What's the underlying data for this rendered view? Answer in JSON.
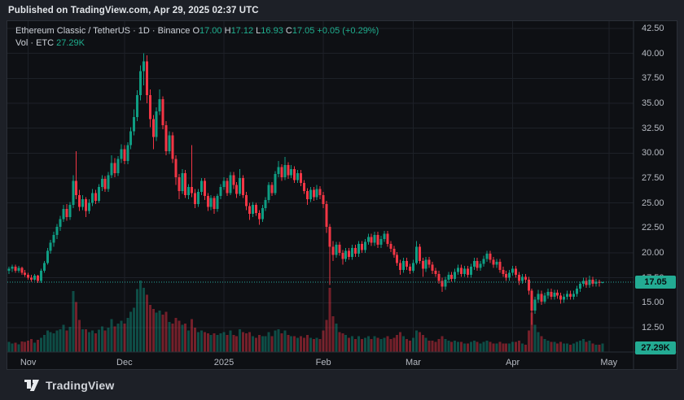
{
  "published_bar": {
    "text": "Published on TradingView.com, Apr 29, 2025 02:37 UTC"
  },
  "legend": {
    "series_text": "Ethereum Classic / TetherUS · 1D · Binance",
    "o_label": "O",
    "o_value": "17.00",
    "h_label": "H",
    "h_value": "17.12",
    "l_label": "L",
    "l_value": "16.93",
    "c_label": "C",
    "c_value": "17.05",
    "change": "+0.05 (+0.29%)",
    "vol_label": "Vol · ETC",
    "vol_value": "27.29K"
  },
  "price_axis": {
    "ticks": [
      {
        "label": "42.50",
        "value": 42.5
      },
      {
        "label": "40.00",
        "value": 40.0
      },
      {
        "label": "37.50",
        "value": 37.5
      },
      {
        "label": "35.00",
        "value": 35.0
      },
      {
        "label": "32.50",
        "value": 32.5
      },
      {
        "label": "30.00",
        "value": 30.0
      },
      {
        "label": "27.50",
        "value": 27.5
      },
      {
        "label": "25.00",
        "value": 25.0
      },
      {
        "label": "22.50",
        "value": 22.5
      },
      {
        "label": "20.00",
        "value": 20.0
      },
      {
        "label": "17.50",
        "value": 17.5
      },
      {
        "label": "15.00",
        "value": 15.0
      },
      {
        "label": "12.50",
        "value": 12.5
      }
    ],
    "last_price": "17.05",
    "last_price_value": 17.05,
    "last_volume": "27.29K"
  },
  "time_axis": {
    "ticks": [
      {
        "label": "Nov",
        "index": 6
      },
      {
        "label": "Dec",
        "index": 36
      },
      {
        "label": "2025",
        "index": 67
      },
      {
        "label": "Feb",
        "index": 98
      },
      {
        "label": "Mar",
        "index": 126
      },
      {
        "label": "Apr",
        "index": 157
      },
      {
        "label": "May",
        "index": 187
      }
    ]
  },
  "footer": {
    "brand": "TradingView"
  },
  "colors": {
    "up": "#0f9d83",
    "down": "#f23645",
    "vol_up": "rgba(16,154,130,0.45)",
    "vol_down": "rgba(242,54,69,0.45)",
    "grid": "#1d2128",
    "axis_sep": "#2b2f37",
    "dotted_price_line": "#26a69a",
    "label_bg": "#23ab93",
    "panel_bg": "#0e1014",
    "outer_bg": "#1d2027"
  },
  "chart_data": {
    "type": "candlestick+volume",
    "title": "Ethereum Classic / TetherUS",
    "exchange": "Binance",
    "interval": "1D",
    "start_date": "2024-10-26",
    "end_date": "2025-04-29",
    "last_close": 17.05,
    "last_change": "+0.05 (+0.29%)",
    "last_volume_label": "27.29K",
    "ylim": [
      10.5,
      43.5
    ],
    "columns": [
      "open",
      "high",
      "low",
      "close",
      "volume_rel_0_100"
    ],
    "candles": [
      [
        18.2,
        18.6,
        17.9,
        18.4,
        14
      ],
      [
        18.4,
        18.8,
        18.1,
        18.6,
        12
      ],
      [
        18.6,
        18.8,
        18.0,
        18.2,
        13
      ],
      [
        18.2,
        18.7,
        18.0,
        18.5,
        11
      ],
      [
        18.5,
        18.6,
        17.8,
        18.0,
        15
      ],
      [
        18.0,
        18.3,
        17.6,
        17.8,
        14
      ],
      [
        17.8,
        18.0,
        17.3,
        17.5,
        16
      ],
      [
        17.5,
        17.8,
        17.1,
        17.3,
        18
      ],
      [
        17.3,
        17.9,
        17.2,
        17.7,
        13
      ],
      [
        17.7,
        17.8,
        17.0,
        17.2,
        17
      ],
      [
        17.2,
        18.4,
        17.0,
        18.2,
        20
      ],
      [
        18.2,
        19.2,
        18.0,
        19.0,
        24
      ],
      [
        19.0,
        20.5,
        18.8,
        20.2,
        30
      ],
      [
        20.2,
        21.3,
        19.9,
        21.0,
        28
      ],
      [
        21.0,
        22.1,
        20.6,
        21.8,
        26
      ],
      [
        21.8,
        22.9,
        21.4,
        22.6,
        30
      ],
      [
        22.6,
        23.7,
        22.2,
        23.4,
        32
      ],
      [
        23.4,
        24.8,
        23.1,
        24.4,
        38
      ],
      [
        24.4,
        24.9,
        23.2,
        23.6,
        30
      ],
      [
        23.6,
        25.1,
        23.3,
        24.8,
        35
      ],
      [
        24.8,
        27.8,
        24.5,
        27.2,
        85
      ],
      [
        27.2,
        30.2,
        25.4,
        25.8,
        70
      ],
      [
        25.8,
        26.3,
        24.2,
        24.6,
        45
      ],
      [
        24.6,
        25.8,
        24.3,
        25.4,
        32
      ],
      [
        25.4,
        25.6,
        23.6,
        24.2,
        32
      ],
      [
        24.2,
        25.4,
        23.9,
        25.0,
        28
      ],
      [
        25.0,
        26.4,
        24.7,
        26.0,
        30
      ],
      [
        26.0,
        26.3,
        24.9,
        25.2,
        26
      ],
      [
        25.2,
        26.9,
        25.0,
        26.6,
        31
      ],
      [
        26.6,
        27.8,
        26.2,
        27.4,
        36
      ],
      [
        27.4,
        27.7,
        26.1,
        26.4,
        30
      ],
      [
        26.4,
        28.1,
        26.1,
        27.8,
        34
      ],
      [
        27.8,
        29.8,
        27.5,
        29.0,
        46
      ],
      [
        29.0,
        29.5,
        27.6,
        28.0,
        36
      ],
      [
        28.0,
        29.7,
        27.7,
        29.4,
        40
      ],
      [
        29.4,
        30.9,
        29.0,
        30.4,
        44
      ],
      [
        30.4,
        30.8,
        28.9,
        29.2,
        40
      ],
      [
        29.2,
        31.1,
        28.9,
        30.8,
        48
      ],
      [
        30.8,
        32.6,
        30.4,
        32.2,
        56
      ],
      [
        32.2,
        34.4,
        31.8,
        33.6,
        62
      ],
      [
        33.6,
        36.3,
        33.2,
        35.8,
        88
      ],
      [
        35.8,
        38.8,
        35.3,
        38.2,
        100
      ],
      [
        38.2,
        40.0,
        36.8,
        39.2,
        90
      ],
      [
        39.2,
        39.8,
        35.0,
        35.8,
        80
      ],
      [
        35.8,
        36.4,
        32.6,
        33.4,
        66
      ],
      [
        33.4,
        33.8,
        30.4,
        31.6,
        60
      ],
      [
        31.6,
        34.6,
        31.2,
        34.2,
        55
      ],
      [
        34.2,
        36.4,
        33.8,
        35.4,
        58
      ],
      [
        35.4,
        35.7,
        32.4,
        32.8,
        52
      ],
      [
        32.8,
        33.2,
        29.8,
        30.2,
        56
      ],
      [
        30.2,
        32.2,
        29.9,
        31.8,
        42
      ],
      [
        31.8,
        32.1,
        29.0,
        29.4,
        40
      ],
      [
        29.4,
        29.8,
        26.8,
        27.6,
        48
      ],
      [
        27.6,
        27.9,
        25.4,
        26.2,
        44
      ],
      [
        26.2,
        28.4,
        25.9,
        28.0,
        38
      ],
      [
        28.0,
        28.3,
        25.5,
        25.8,
        40
      ],
      [
        25.8,
        26.9,
        25.4,
        26.6,
        30
      ],
      [
        26.6,
        30.8,
        25.6,
        26.0,
        46
      ],
      [
        26.0,
        26.4,
        24.5,
        24.9,
        34
      ],
      [
        24.9,
        26.4,
        24.6,
        26.1,
        28
      ],
      [
        26.1,
        27.5,
        25.8,
        27.2,
        30
      ],
      [
        27.2,
        27.5,
        25.3,
        25.7,
        28
      ],
      [
        25.7,
        26.0,
        24.2,
        24.6,
        26
      ],
      [
        24.6,
        25.8,
        24.3,
        25.5,
        24
      ],
      [
        25.5,
        25.7,
        23.9,
        24.4,
        26
      ],
      [
        24.4,
        25.9,
        24.1,
        25.7,
        24
      ],
      [
        25.7,
        26.9,
        25.4,
        26.6,
        26
      ],
      [
        26.6,
        27.6,
        26.3,
        27.2,
        28
      ],
      [
        27.2,
        27.5,
        25.7,
        26.0,
        24
      ],
      [
        26.0,
        28.1,
        25.8,
        27.8,
        30
      ],
      [
        27.8,
        28.1,
        26.4,
        26.8,
        24
      ],
      [
        26.8,
        27.1,
        25.5,
        25.9,
        22
      ],
      [
        25.9,
        28.4,
        25.7,
        27.5,
        32
      ],
      [
        27.5,
        27.8,
        25.5,
        25.8,
        28
      ],
      [
        25.8,
        26.1,
        24.3,
        24.7,
        26
      ],
      [
        24.7,
        25.0,
        23.3,
        23.9,
        28
      ],
      [
        23.9,
        25.1,
        23.6,
        24.8,
        22
      ],
      [
        24.8,
        25.0,
        23.7,
        24.0,
        20
      ],
      [
        24.0,
        24.3,
        22.8,
        23.4,
        24
      ],
      [
        23.4,
        24.8,
        23.1,
        24.5,
        22
      ],
      [
        24.5,
        25.6,
        24.2,
        25.3,
        22
      ],
      [
        25.3,
        27.1,
        25.0,
        26.8,
        28
      ],
      [
        26.8,
        27.1,
        25.7,
        26.0,
        22
      ],
      [
        26.0,
        28.2,
        25.8,
        27.9,
        30
      ],
      [
        27.9,
        29.2,
        27.6,
        28.6,
        32
      ],
      [
        28.6,
        28.9,
        27.2,
        27.6,
        26
      ],
      [
        27.6,
        29.6,
        27.3,
        28.8,
        30
      ],
      [
        28.8,
        29.1,
        27.4,
        27.8,
        24
      ],
      [
        27.8,
        28.8,
        27.5,
        28.4,
        22
      ],
      [
        28.4,
        28.7,
        27.0,
        27.3,
        22
      ],
      [
        27.3,
        28.3,
        27.0,
        28.0,
        20
      ],
      [
        28.0,
        28.3,
        26.7,
        27.0,
        22
      ],
      [
        27.0,
        27.3,
        25.9,
        26.2,
        20
      ],
      [
        26.2,
        26.5,
        24.8,
        25.4,
        24
      ],
      [
        25.4,
        26.6,
        25.1,
        26.3,
        20
      ],
      [
        26.3,
        26.6,
        25.2,
        25.6,
        18
      ],
      [
        25.6,
        26.8,
        25.3,
        26.4,
        20
      ],
      [
        26.4,
        26.7,
        25.4,
        25.8,
        18
      ],
      [
        25.8,
        26.1,
        24.5,
        24.9,
        30
      ],
      [
        24.9,
        25.2,
        22.0,
        22.6,
        45
      ],
      [
        22.6,
        22.9,
        16.8,
        20.6,
        90
      ],
      [
        20.6,
        21.2,
        19.2,
        19.8,
        50
      ],
      [
        19.8,
        21.1,
        19.5,
        20.8,
        40
      ],
      [
        20.8,
        21.1,
        19.7,
        20.0,
        28
      ],
      [
        20.0,
        20.3,
        18.8,
        19.4,
        26
      ],
      [
        19.4,
        20.5,
        19.1,
        20.2,
        24
      ],
      [
        20.2,
        20.5,
        19.3,
        19.6,
        20
      ],
      [
        19.6,
        20.8,
        19.3,
        20.5,
        22
      ],
      [
        20.5,
        20.8,
        19.6,
        19.9,
        18
      ],
      [
        19.9,
        21.2,
        19.6,
        20.9,
        22
      ],
      [
        20.9,
        21.2,
        20.0,
        20.3,
        18
      ],
      [
        20.3,
        21.4,
        20.0,
        21.1,
        20
      ],
      [
        21.1,
        21.9,
        20.8,
        21.6,
        22
      ],
      [
        21.6,
        21.9,
        20.7,
        21.0,
        18
      ],
      [
        21.0,
        22.1,
        20.7,
        21.8,
        22
      ],
      [
        21.8,
        22.1,
        20.5,
        20.8,
        20
      ],
      [
        20.8,
        21.7,
        20.5,
        21.4,
        18
      ],
      [
        21.4,
        22.2,
        21.1,
        21.9,
        20
      ],
      [
        21.9,
        22.2,
        20.6,
        20.9,
        22
      ],
      [
        20.9,
        21.2,
        20.1,
        20.4,
        18
      ],
      [
        20.4,
        20.7,
        19.5,
        19.8,
        20
      ],
      [
        19.8,
        20.1,
        18.7,
        19.0,
        24
      ],
      [
        19.0,
        19.3,
        17.8,
        18.3,
        28
      ],
      [
        18.3,
        19.5,
        18.0,
        19.2,
        22
      ],
      [
        19.2,
        19.5,
        18.3,
        18.6,
        18
      ],
      [
        18.6,
        18.9,
        17.9,
        18.2,
        16
      ],
      [
        18.2,
        19.3,
        18.0,
        19.0,
        20
      ],
      [
        19.0,
        21.2,
        18.8,
        20.6,
        30
      ],
      [
        20.6,
        20.9,
        18.9,
        19.2,
        28
      ],
      [
        19.2,
        19.5,
        17.6,
        18.4,
        24
      ],
      [
        18.4,
        19.6,
        18.1,
        19.3,
        20
      ],
      [
        19.3,
        19.6,
        18.5,
        18.8,
        16
      ],
      [
        18.8,
        19.1,
        17.9,
        18.2,
        16
      ],
      [
        18.2,
        18.5,
        17.6,
        17.9,
        14
      ],
      [
        17.9,
        18.2,
        16.9,
        17.2,
        18
      ],
      [
        17.2,
        17.5,
        16.1,
        16.6,
        22
      ],
      [
        16.6,
        17.6,
        16.3,
        17.3,
        18
      ],
      [
        17.3,
        18.1,
        17.0,
        17.8,
        16
      ],
      [
        17.8,
        18.1,
        17.1,
        17.4,
        14
      ],
      [
        17.4,
        18.4,
        17.1,
        18.1,
        16
      ],
      [
        18.1,
        18.8,
        17.8,
        18.5,
        14
      ],
      [
        18.5,
        18.8,
        17.6,
        17.9,
        14
      ],
      [
        17.9,
        18.7,
        17.6,
        18.4,
        12
      ],
      [
        18.4,
        18.7,
        17.5,
        17.8,
        12
      ],
      [
        17.8,
        18.9,
        17.5,
        18.6,
        14
      ],
      [
        18.6,
        19.5,
        18.3,
        19.2,
        16
      ],
      [
        19.2,
        19.5,
        18.2,
        18.5,
        14
      ],
      [
        18.5,
        19.2,
        18.2,
        18.9,
        12
      ],
      [
        18.9,
        19.7,
        18.6,
        19.4,
        14
      ],
      [
        19.4,
        20.2,
        19.1,
        19.9,
        16
      ],
      [
        19.9,
        20.2,
        19.0,
        19.3,
        14
      ],
      [
        19.3,
        19.6,
        18.5,
        18.8,
        12
      ],
      [
        18.8,
        19.4,
        18.5,
        19.1,
        12
      ],
      [
        19.1,
        19.4,
        18.0,
        18.3,
        14
      ],
      [
        18.3,
        18.6,
        17.6,
        17.9,
        12
      ],
      [
        17.9,
        18.2,
        17.2,
        17.5,
        12
      ],
      [
        17.5,
        18.3,
        17.2,
        18.0,
        12
      ],
      [
        18.0,
        18.7,
        17.7,
        18.4,
        14
      ],
      [
        18.4,
        18.7,
        17.5,
        17.8,
        14
      ],
      [
        17.8,
        18.1,
        16.8,
        17.2,
        16
      ],
      [
        17.2,
        17.9,
        16.9,
        17.6,
        12
      ],
      [
        17.6,
        17.9,
        17.0,
        17.3,
        10
      ],
      [
        17.3,
        17.6,
        15.8,
        16.2,
        30
      ],
      [
        16.2,
        16.4,
        12.8,
        14.2,
        55
      ],
      [
        14.2,
        15.6,
        13.9,
        15.3,
        38
      ],
      [
        15.3,
        16.3,
        15.0,
        15.9,
        28
      ],
      [
        15.9,
        16.2,
        14.8,
        15.1,
        22
      ],
      [
        15.1,
        16.0,
        14.9,
        15.7,
        18
      ],
      [
        15.7,
        16.4,
        15.4,
        16.1,
        16
      ],
      [
        16.1,
        16.4,
        15.3,
        15.6,
        14
      ],
      [
        15.6,
        16.3,
        15.3,
        16.0,
        14
      ],
      [
        16.0,
        16.3,
        15.4,
        15.7,
        12
      ],
      [
        15.7,
        16.0,
        14.9,
        15.3,
        14
      ],
      [
        15.3,
        15.9,
        15.0,
        15.6,
        12
      ],
      [
        15.6,
        16.2,
        15.3,
        15.9,
        12
      ],
      [
        15.9,
        16.2,
        15.3,
        15.6,
        10
      ],
      [
        15.6,
        16.2,
        15.3,
        15.9,
        12
      ],
      [
        15.9,
        16.7,
        15.6,
        16.4,
        14
      ],
      [
        16.4,
        17.1,
        16.1,
        16.9,
        16
      ],
      [
        16.9,
        17.5,
        16.6,
        17.2,
        18
      ],
      [
        17.2,
        17.5,
        16.5,
        16.8,
        14
      ],
      [
        16.8,
        17.7,
        16.5,
        17.3,
        16
      ],
      [
        17.3,
        17.6,
        16.6,
        16.9,
        12
      ],
      [
        16.9,
        17.4,
        16.6,
        17.1,
        10
      ],
      [
        17.1,
        17.3,
        16.6,
        17.0,
        10
      ],
      [
        17.0,
        17.12,
        16.93,
        17.05,
        12
      ]
    ]
  }
}
